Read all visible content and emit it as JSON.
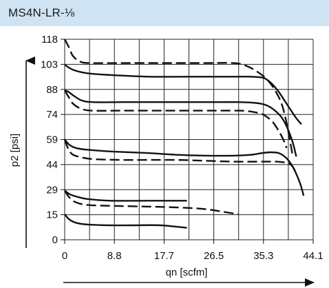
{
  "header": {
    "title": "MS4N-LR-⅛"
  },
  "chart_data": {
    "type": "line",
    "xlabel": "qn [scfm]",
    "ylabel": "p2 [psi]",
    "xlim": [
      0,
      44.1
    ],
    "ylim": [
      0,
      118
    ],
    "x_ticks": [
      "0",
      "8.8",
      "17.7",
      "26.5",
      "35.3",
      "44.1"
    ],
    "y_ticks": [
      "0",
      "15",
      "29",
      "44",
      "59",
      "74",
      "88",
      "103",
      "118"
    ],
    "grid": true,
    "axis_color": "#111111",
    "series": [
      {
        "style": "dashed",
        "x": [
          0,
          0.8,
          1.5,
          3.0,
          5.0,
          10,
          15,
          20,
          25,
          30,
          32.5,
          35,
          36.5,
          37.5,
          38.5,
          39.3,
          40.0,
          40.5
        ],
        "y": [
          118,
          113,
          108,
          104.5,
          104,
          104,
          104,
          104,
          104,
          104,
          102,
          97,
          92,
          87,
          80,
          70,
          58,
          49
        ]
      },
      {
        "style": "solid",
        "x": [
          0,
          1.5,
          4,
          8,
          15,
          22,
          30,
          33,
          35,
          36,
          37,
          38,
          39,
          40,
          41,
          42
        ],
        "y": [
          103,
          100,
          98,
          97,
          96,
          96,
          96,
          96,
          95.5,
          94,
          91,
          87,
          82,
          77,
          72,
          68
        ]
      },
      {
        "style": "solid",
        "x": [
          0,
          0.7,
          1.5,
          3.0,
          5.0,
          10,
          15,
          20,
          26,
          31,
          34,
          35.5,
          36.5,
          37.5,
          38.5,
          39.5,
          40.5,
          41.1
        ],
        "y": [
          88,
          87,
          85,
          82,
          81,
          81,
          81,
          81,
          81,
          81,
          80.5,
          79.5,
          78,
          75.5,
          72,
          66,
          57,
          49
        ]
      },
      {
        "style": "dashed",
        "x": [
          0,
          0.7,
          1.5,
          3.0,
          5.0,
          10,
          15,
          20,
          26,
          31,
          33,
          35,
          36,
          37,
          38,
          38.8,
          39.4
        ],
        "y": [
          88,
          84,
          80,
          77,
          76,
          76,
          76,
          76,
          76,
          76,
          75.5,
          74,
          72,
          69,
          64,
          59,
          54
        ]
      },
      {
        "style": "solid",
        "x": [
          0,
          0.8,
          2.0,
          4,
          8,
          15,
          20,
          25,
          30,
          33,
          35,
          36.5,
          38,
          39.2,
          40.3,
          41.2,
          41.9,
          42.4
        ],
        "y": [
          59,
          56,
          54,
          53,
          52,
          51,
          50,
          49.5,
          49.5,
          50,
          51,
          51.5,
          51,
          48.5,
          44,
          38,
          32,
          26
        ]
      },
      {
        "style": "dashed",
        "x": [
          0,
          0.7,
          1.5,
          3.0,
          5.0,
          10,
          15,
          20,
          25,
          30,
          35,
          37.5,
          39,
          40.2,
          41.0
        ],
        "y": [
          59,
          53,
          50,
          48.5,
          47.5,
          47,
          47,
          47,
          46.5,
          46,
          46,
          46,
          45.5,
          44,
          40
        ]
      },
      {
        "style": "solid",
        "x": [
          0,
          0.8,
          2.0,
          4,
          8,
          15,
          21.7
        ],
        "y": [
          29,
          27,
          25.5,
          24,
          23,
          23,
          23
        ]
      },
      {
        "style": "dashed",
        "x": [
          0,
          0.8,
          2.0,
          4,
          8,
          15,
          20,
          25,
          30.8
        ],
        "y": [
          29,
          25,
          22,
          20.5,
          20,
          19.5,
          19,
          18,
          15
        ]
      },
      {
        "style": "solid",
        "x": [
          0,
          0.8,
          2.0,
          4,
          8,
          12,
          17,
          21.7
        ],
        "y": [
          15,
          12,
          10,
          9,
          8.5,
          8.5,
          8.5,
          7
        ]
      }
    ]
  }
}
